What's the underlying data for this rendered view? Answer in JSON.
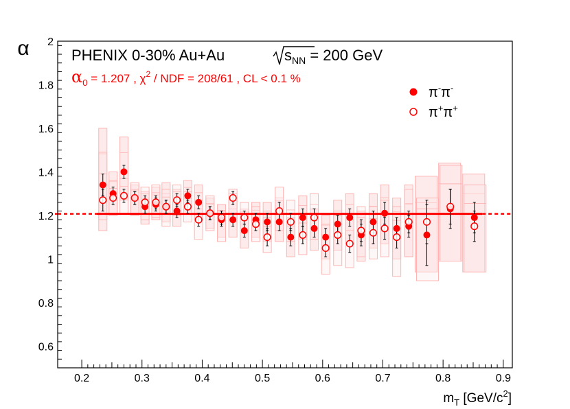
{
  "chart_data": {
    "type": "scatter",
    "title": "PHENIX 0-30%  Au+Au",
    "energy_label": "s_NN = 200 GeV",
    "fit_label": "α_0 = 1.207  ,  χ^2 / NDF = 208/61 , CL < 0.1 %",
    "ylabel": "α",
    "xlabel": "m_T [GeV/c^2]",
    "xlim": [
      0.16,
      0.915
    ],
    "ylim": [
      0.5,
      2.0
    ],
    "xticks": [
      "0.2",
      "0.3",
      "0.4",
      "0.5",
      "0.6",
      "0.7",
      "0.8",
      "0.9"
    ],
    "yticks": [
      "0.6",
      "0.8",
      "1",
      "1.2",
      "1.4",
      "1.6",
      "1.8",
      "2"
    ],
    "fit_value": 1.207,
    "colors": {
      "marker": "#ff0000",
      "band": "#ffb3b3",
      "band_fill": "#fde8e8",
      "error": "#000000",
      "fit": "#ff0000"
    },
    "series": [
      {
        "name": "π⁻π⁻",
        "legend": "π-π-",
        "marker": "filled",
        "points": [
          {
            "x": 0.235,
            "y": 1.34,
            "err": 0.05,
            "sys_lo": 1.13,
            "sys_hi": 1.6
          },
          {
            "x": 0.252,
            "y": 1.3,
            "err": 0.03,
            "sys_lo": 1.21,
            "sys_hi": 1.4
          },
          {
            "x": 0.27,
            "y": 1.4,
            "err": 0.03,
            "sys_lo": 1.27,
            "sys_hi": 1.56
          },
          {
            "x": 0.288,
            "y": 1.28,
            "err": 0.03,
            "sys_lo": 1.21,
            "sys_hi": 1.34
          },
          {
            "x": 0.305,
            "y": 1.24,
            "err": 0.03,
            "sys_lo": 1.16,
            "sys_hi": 1.31
          },
          {
            "x": 0.323,
            "y": 1.25,
            "err": 0.03,
            "sys_lo": 1.18,
            "sys_hi": 1.33
          },
          {
            "x": 0.34,
            "y": 1.24,
            "err": 0.03,
            "sys_lo": 1.17,
            "sys_hi": 1.35
          },
          {
            "x": 0.358,
            "y": 1.22,
            "err": 0.03,
            "sys_lo": 1.15,
            "sys_hi": 1.32
          },
          {
            "x": 0.376,
            "y": 1.29,
            "err": 0.03,
            "sys_lo": 1.22,
            "sys_hi": 1.36
          },
          {
            "x": 0.394,
            "y": 1.26,
            "err": 0.03,
            "sys_lo": 1.18,
            "sys_hi": 1.34
          },
          {
            "x": 0.413,
            "y": 1.21,
            "err": 0.03,
            "sys_lo": 1.14,
            "sys_hi": 1.28
          },
          {
            "x": 0.432,
            "y": 1.18,
            "err": 0.03,
            "sys_lo": 1.1,
            "sys_hi": 1.25
          },
          {
            "x": 0.451,
            "y": 1.18,
            "err": 0.03,
            "sys_lo": 1.1,
            "sys_hi": 1.27
          },
          {
            "x": 0.47,
            "y": 1.13,
            "err": 0.03,
            "sys_lo": 1.05,
            "sys_hi": 1.22
          },
          {
            "x": 0.489,
            "y": 1.18,
            "err": 0.03,
            "sys_lo": 1.1,
            "sys_hi": 1.26
          },
          {
            "x": 0.508,
            "y": 1.17,
            "err": 0.04,
            "sys_lo": 1.08,
            "sys_hi": 1.26
          },
          {
            "x": 0.528,
            "y": 1.17,
            "err": 0.04,
            "sys_lo": 1.08,
            "sys_hi": 1.27
          },
          {
            "x": 0.547,
            "y": 1.1,
            "err": 0.04,
            "sys_lo": 1.01,
            "sys_hi": 1.19
          },
          {
            "x": 0.567,
            "y": 1.19,
            "err": 0.04,
            "sys_lo": 1.09,
            "sys_hi": 1.29
          },
          {
            "x": 0.586,
            "y": 1.14,
            "err": 0.04,
            "sys_lo": 1.04,
            "sys_hi": 1.23
          },
          {
            "x": 0.605,
            "y": 1.1,
            "err": 0.04,
            "sys_lo": 1.0,
            "sys_hi": 1.2
          },
          {
            "x": 0.625,
            "y": 1.16,
            "err": 0.04,
            "sys_lo": 1.04,
            "sys_hi": 1.27
          },
          {
            "x": 0.645,
            "y": 1.19,
            "err": 0.04,
            "sys_lo": 1.07,
            "sys_hi": 1.3
          },
          {
            "x": 0.664,
            "y": 1.11,
            "err": 0.05,
            "sys_lo": 0.99,
            "sys_hi": 1.22
          },
          {
            "x": 0.684,
            "y": 1.17,
            "err": 0.05,
            "sys_lo": 1.05,
            "sys_hi": 1.3
          },
          {
            "x": 0.703,
            "y": 1.21,
            "err": 0.05,
            "sys_lo": 1.07,
            "sys_hi": 1.34
          },
          {
            "x": 0.723,
            "y": 1.14,
            "err": 0.05,
            "sys_lo": 1.0,
            "sys_hi": 1.28
          },
          {
            "x": 0.743,
            "y": 1.15,
            "err": 0.05,
            "sys_lo": 1.01,
            "sys_hi": 1.34
          },
          {
            "x": 0.773,
            "y": 1.11,
            "err": 0.14,
            "sys_lo": 0.94,
            "sys_hi": 1.38
          },
          {
            "x": 0.812,
            "y": 1.23,
            "err": 0.09,
            "sys_lo": 0.99,
            "sys_hi": 1.44
          },
          {
            "x": 0.852,
            "y": 1.19,
            "err": 0.07,
            "sys_lo": 0.94,
            "sys_hi": 1.39
          }
        ]
      },
      {
        "name": "π⁺π⁺",
        "legend": "π+π+",
        "marker": "open",
        "points": [
          {
            "x": 0.235,
            "y": 1.27,
            "err": 0.05,
            "sys_lo": 1.18,
            "sys_hi": 1.49
          },
          {
            "x": 0.252,
            "y": 1.28,
            "err": 0.03,
            "sys_lo": 1.2,
            "sys_hi": 1.36
          },
          {
            "x": 0.27,
            "y": 1.29,
            "err": 0.03,
            "sys_lo": 1.21,
            "sys_hi": 1.37
          },
          {
            "x": 0.288,
            "y": 1.28,
            "err": 0.03,
            "sys_lo": 1.2,
            "sys_hi": 1.35
          },
          {
            "x": 0.305,
            "y": 1.26,
            "err": 0.03,
            "sys_lo": 1.18,
            "sys_hi": 1.33
          },
          {
            "x": 0.323,
            "y": 1.26,
            "err": 0.03,
            "sys_lo": 1.19,
            "sys_hi": 1.34
          },
          {
            "x": 0.34,
            "y": 1.24,
            "err": 0.03,
            "sys_lo": 1.15,
            "sys_hi": 1.32
          },
          {
            "x": 0.358,
            "y": 1.27,
            "err": 0.03,
            "sys_lo": 1.2,
            "sys_hi": 1.34
          },
          {
            "x": 0.376,
            "y": 1.24,
            "err": 0.03,
            "sys_lo": 1.17,
            "sys_hi": 1.31
          },
          {
            "x": 0.394,
            "y": 1.18,
            "err": 0.03,
            "sys_lo": 1.09,
            "sys_hi": 1.27
          },
          {
            "x": 0.413,
            "y": 1.21,
            "err": 0.03,
            "sys_lo": 1.13,
            "sys_hi": 1.29
          },
          {
            "x": 0.432,
            "y": 1.19,
            "err": 0.03,
            "sys_lo": 1.08,
            "sys_hi": 1.25
          },
          {
            "x": 0.451,
            "y": 1.28,
            "err": 0.03,
            "sys_lo": 1.17,
            "sys_hi": 1.32
          },
          {
            "x": 0.47,
            "y": 1.19,
            "err": 0.03,
            "sys_lo": 1.12,
            "sys_hi": 1.26
          },
          {
            "x": 0.489,
            "y": 1.16,
            "err": 0.03,
            "sys_lo": 1.08,
            "sys_hi": 1.24
          },
          {
            "x": 0.508,
            "y": 1.1,
            "err": 0.04,
            "sys_lo": 1.03,
            "sys_hi": 1.19
          },
          {
            "x": 0.528,
            "y": 1.22,
            "err": 0.04,
            "sys_lo": 1.13,
            "sys_hi": 1.33
          },
          {
            "x": 0.547,
            "y": 1.17,
            "err": 0.04,
            "sys_lo": 1.08,
            "sys_hi": 1.27
          },
          {
            "x": 0.567,
            "y": 1.11,
            "err": 0.04,
            "sys_lo": 1.02,
            "sys_hi": 1.21
          },
          {
            "x": 0.586,
            "y": 1.19,
            "err": 0.04,
            "sys_lo": 1.09,
            "sys_hi": 1.3
          },
          {
            "x": 0.605,
            "y": 1.05,
            "err": 0.04,
            "sys_lo": 0.93,
            "sys_hi": 1.16
          },
          {
            "x": 0.625,
            "y": 1.11,
            "err": 0.04,
            "sys_lo": 0.97,
            "sys_hi": 1.2
          },
          {
            "x": 0.645,
            "y": 1.07,
            "err": 0.04,
            "sys_lo": 0.96,
            "sys_hi": 1.18
          },
          {
            "x": 0.664,
            "y": 1.13,
            "err": 0.05,
            "sys_lo": 1.01,
            "sys_hi": 1.24
          },
          {
            "x": 0.684,
            "y": 1.12,
            "err": 0.05,
            "sys_lo": 1.0,
            "sys_hi": 1.24
          },
          {
            "x": 0.703,
            "y": 1.14,
            "err": 0.05,
            "sys_lo": 1.01,
            "sys_hi": 1.27
          },
          {
            "x": 0.723,
            "y": 1.1,
            "err": 0.05,
            "sys_lo": 0.92,
            "sys_hi": 1.24
          },
          {
            "x": 0.743,
            "y": 1.17,
            "err": 0.05,
            "sys_lo": 1.01,
            "sys_hi": 1.32
          },
          {
            "x": 0.773,
            "y": 1.17,
            "err": 0.1,
            "sys_lo": 0.9,
            "sys_hi": 1.28
          },
          {
            "x": 0.812,
            "y": 1.24,
            "err": 0.08,
            "sys_lo": 0.99,
            "sys_hi": 1.43
          },
          {
            "x": 0.852,
            "y": 1.15,
            "err": 0.07,
            "sys_lo": 0.94,
            "sys_hi": 1.34
          }
        ]
      }
    ]
  }
}
